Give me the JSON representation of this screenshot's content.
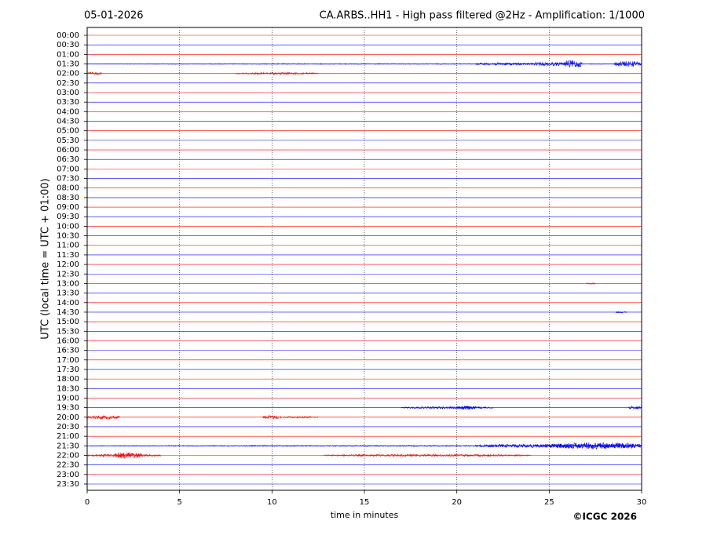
{
  "chart_data": {
    "type": "helicorder",
    "date": "05-01-2026",
    "title": "CA.ARBS..HH1 - High pass filtered @2Hz - Amplification: 1/1000",
    "y_label": "UTC (local time = UTC + 01:00)",
    "x_label": "time in minutes",
    "copyright": "©ICGC 2026",
    "categories": [
      "00:00",
      "00:30",
      "01:00",
      "01:30",
      "02:00",
      "02:30",
      "03:00",
      "03:30",
      "04:00",
      "04:30",
      "05:00",
      "05:30",
      "06:00",
      "06:30",
      "07:00",
      "07:30",
      "08:00",
      "08:30",
      "09:00",
      "09:30",
      "10:00",
      "10:30",
      "11:00",
      "11:30",
      "12:00",
      "12:30",
      "13:00",
      "13:30",
      "14:00",
      "14:30",
      "15:00",
      "15:30",
      "16:00",
      "16:30",
      "17:00",
      "17:30",
      "18:00",
      "18:30",
      "19:00",
      "19:30",
      "20:00",
      "20:30",
      "21:00",
      "21:30",
      "22:00",
      "22:30",
      "23:00",
      "23:30"
    ],
    "colors": [
      "#ff0000",
      "#0000ff"
    ],
    "xlim": [
      0,
      30
    ],
    "xticks": [
      0,
      5,
      10,
      15,
      20,
      25,
      30
    ],
    "grid": true,
    "bursts": [
      {
        "row": 3,
        "x": [
          0,
          30
        ],
        "amplitude": 0.05
      },
      {
        "row": 3,
        "x": [
          21,
          24
        ],
        "amplitude": 0.15
      },
      {
        "row": 3,
        "x": [
          24,
          26
        ],
        "amplitude": 0.2
      },
      {
        "row": 3,
        "x": [
          25.8,
          26.8
        ],
        "amplitude": 0.4
      },
      {
        "row": 3,
        "x": [
          28.5,
          30
        ],
        "amplitude": 0.3
      },
      {
        "row": 4,
        "x": [
          0,
          0.8
        ],
        "amplitude": 0.15
      },
      {
        "row": 4,
        "x": [
          8,
          12.5
        ],
        "amplitude": 0.12
      },
      {
        "row": 26,
        "x": [
          27,
          27.5
        ],
        "amplitude": 0.08
      },
      {
        "row": 29,
        "x": [
          28.6,
          29.2
        ],
        "amplitude": 0.1
      },
      {
        "row": 39,
        "x": [
          17,
          22
        ],
        "amplitude": 0.12
      },
      {
        "row": 39,
        "x": [
          20,
          21
        ],
        "amplitude": 0.2
      },
      {
        "row": 39,
        "x": [
          29.3,
          30
        ],
        "amplitude": 0.2
      },
      {
        "row": 40,
        "x": [
          0,
          1.8
        ],
        "amplitude": 0.2
      },
      {
        "row": 40,
        "x": [
          9.5,
          10.5
        ],
        "amplitude": 0.2
      },
      {
        "row": 40,
        "x": [
          10.5,
          12.5
        ],
        "amplitude": 0.1
      },
      {
        "row": 43,
        "x": [
          0,
          30
        ],
        "amplitude": 0.06
      },
      {
        "row": 43,
        "x": [
          21,
          30
        ],
        "amplitude": 0.2
      },
      {
        "row": 43,
        "x": [
          25,
          30
        ],
        "amplitude": 0.35
      },
      {
        "row": 44,
        "x": [
          0,
          4
        ],
        "amplitude": 0.15
      },
      {
        "row": 44,
        "x": [
          1.5,
          3
        ],
        "amplitude": 0.35
      },
      {
        "row": 44,
        "x": [
          12.8,
          24
        ],
        "amplitude": 0.12
      }
    ]
  }
}
